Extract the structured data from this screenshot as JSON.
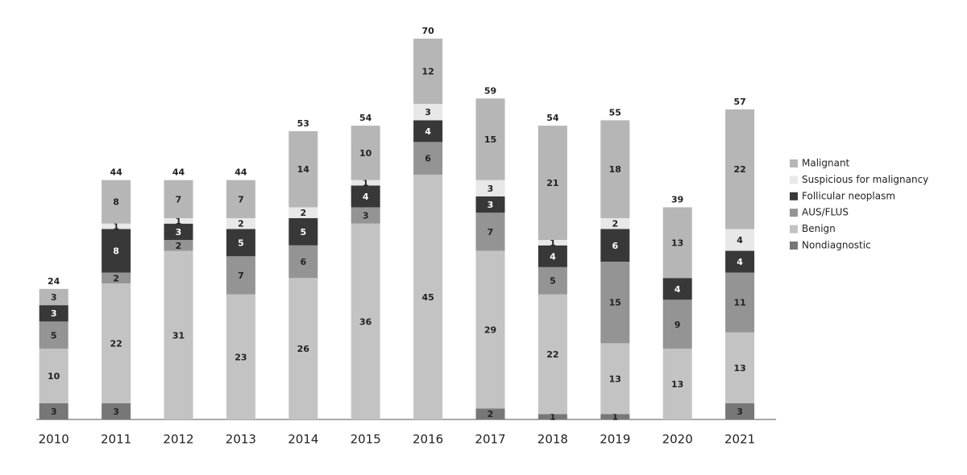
{
  "chart_data": {
    "type": "stacked-bar",
    "categories": [
      "2010",
      "2011",
      "2012",
      "2013",
      "2014",
      "2015",
      "2016",
      "2017",
      "2018",
      "2019",
      "2020",
      "2021"
    ],
    "series": [
      {
        "name": "Nondiagnostic",
        "color": "#777777",
        "values": [
          3,
          3,
          0,
          0,
          0,
          0,
          0,
          2,
          1,
          1,
          0,
          3
        ]
      },
      {
        "name": "Benign",
        "color": "#c3c3c3",
        "values": [
          10,
          22,
          31,
          23,
          26,
          36,
          45,
          29,
          22,
          13,
          13,
          13
        ]
      },
      {
        "name": "AUS/FLUS",
        "color": "#949494",
        "values": [
          5,
          2,
          2,
          7,
          6,
          3,
          6,
          7,
          5,
          15,
          9,
          11
        ]
      },
      {
        "name": "Follicular neoplasm",
        "color": "#383838",
        "values": [
          3,
          8,
          3,
          5,
          5,
          4,
          4,
          3,
          4,
          6,
          4,
          4
        ]
      },
      {
        "name": "Suspicious for malignancy",
        "color": "#e8e8e8",
        "values": [
          0,
          1,
          1,
          2,
          2,
          1,
          3,
          3,
          1,
          2,
          0,
          4
        ]
      },
      {
        "name": "Malignant",
        "color": "#b6b6b6",
        "values": [
          3,
          8,
          7,
          7,
          14,
          10,
          12,
          15,
          21,
          18,
          13,
          22
        ]
      }
    ],
    "totals": [
      24,
      44,
      44,
      44,
      53,
      54,
      70,
      59,
      54,
      55,
      39,
      57
    ],
    "ylim": [
      0,
      70
    ]
  }
}
